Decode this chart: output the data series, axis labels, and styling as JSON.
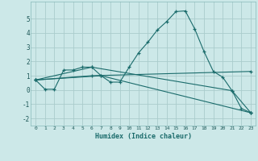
{
  "xlabel": "Humidex (Indice chaleur)",
  "bg_color": "#cce8e8",
  "grid_color": "#aacccc",
  "line_color": "#1a6b6b",
  "xlim": [
    -0.5,
    23.5
  ],
  "ylim": [
    -2.5,
    6.2
  ],
  "yticks": [
    -2,
    -1,
    0,
    1,
    2,
    3,
    4,
    5
  ],
  "xticks": [
    0,
    1,
    2,
    3,
    4,
    5,
    6,
    7,
    8,
    9,
    10,
    11,
    12,
    13,
    14,
    15,
    16,
    17,
    18,
    19,
    20,
    21,
    22,
    23
  ],
  "lines": [
    {
      "x": [
        0,
        1,
        2,
        3,
        4,
        5,
        6,
        7,
        8,
        9,
        10,
        11,
        12,
        13,
        14,
        15,
        16,
        17,
        18,
        19,
        20,
        21,
        22,
        23
      ],
      "y": [
        0.7,
        0.05,
        0.05,
        1.4,
        1.4,
        1.6,
        1.6,
        1.0,
        0.55,
        0.55,
        1.6,
        2.6,
        3.35,
        4.2,
        4.8,
        5.5,
        5.55,
        4.3,
        2.7,
        1.3,
        0.9,
        -0.05,
        -1.3,
        -1.6
      ]
    },
    {
      "x": [
        0,
        6,
        23
      ],
      "y": [
        0.7,
        1.0,
        1.3
      ]
    },
    {
      "x": [
        0,
        6,
        21,
        23
      ],
      "y": [
        0.7,
        1.6,
        -0.05,
        -1.6
      ]
    },
    {
      "x": [
        0,
        7,
        23
      ],
      "y": [
        0.7,
        1.0,
        -1.6
      ]
    }
  ]
}
